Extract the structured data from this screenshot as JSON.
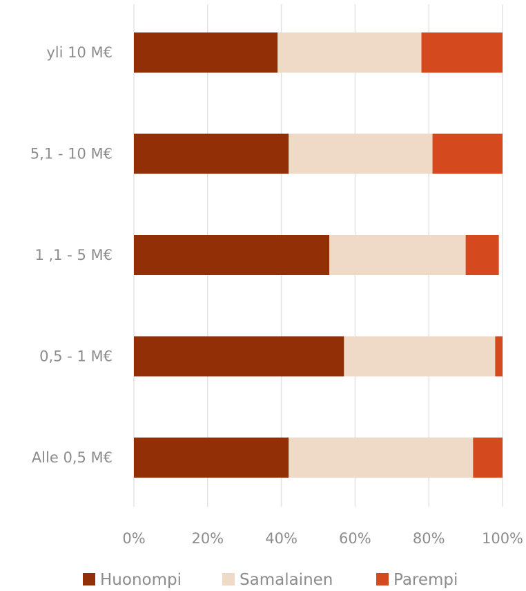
{
  "chart_data": {
    "type": "bar",
    "orientation": "horizontal",
    "stacked": true,
    "categories": [
      "yli 10 M€",
      "5,1 - 10 M€",
      "1 ,1 - 5 M€",
      "0,5 - 1 M€",
      "Alle 0,5 M€"
    ],
    "series": [
      {
        "name": "Huonompi",
        "color": "#922f07",
        "values": [
          39,
          42,
          53,
          57,
          42
        ]
      },
      {
        "name": "Samalainen",
        "color": "#eedac7",
        "values": [
          39,
          39,
          37,
          41,
          50
        ]
      },
      {
        "name": "Parempi",
        "color": "#d4491d",
        "values": [
          22,
          19,
          9,
          2,
          8
        ]
      }
    ],
    "x_ticks": [
      "0%",
      "20%",
      "40%",
      "60%",
      "80%",
      "100%"
    ],
    "xlim": [
      0,
      100
    ],
    "grid": true,
    "legend_position": "bottom"
  }
}
